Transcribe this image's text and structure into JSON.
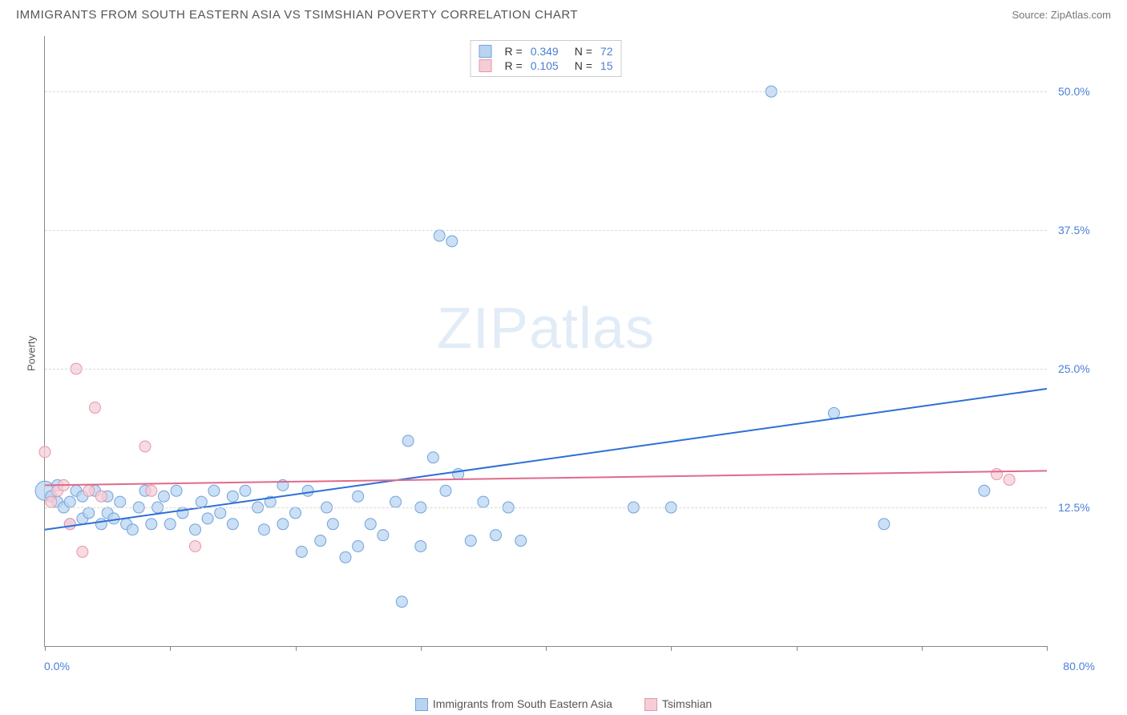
{
  "header": {
    "title": "IMMIGRANTS FROM SOUTH EASTERN ASIA VS TSIMSHIAN POVERTY CORRELATION CHART",
    "source": "Source: ZipAtlas.com"
  },
  "watermark": {
    "part1": "ZIP",
    "part2": "atlas"
  },
  "chart": {
    "type": "scatter",
    "ylabel": "Poverty",
    "xlim": [
      0,
      80
    ],
    "ylim": [
      0,
      55
    ],
    "background_color": "#ffffff",
    "grid_color": "#d8d8d8",
    "axis_color": "#888888",
    "tick_label_color": "#4a7fd8",
    "tick_fontsize": 14,
    "yticks": [
      {
        "v": 12.5,
        "label": "12.5%"
      },
      {
        "v": 25.0,
        "label": "25.0%"
      },
      {
        "v": 37.5,
        "label": "37.5%"
      },
      {
        "v": 50.0,
        "label": "50.0%"
      }
    ],
    "xticks_minor": [
      0,
      10,
      20,
      30,
      40,
      50,
      60,
      70,
      80
    ],
    "x_first_label": "0.0%",
    "x_last_label": "80.0%",
    "legend_top": [
      {
        "swatch_fill": "#b9d4f1",
        "swatch_stroke": "#6fa3dd",
        "r_label": "R =",
        "r_val": "0.349",
        "n_label": "N =",
        "n_val": "72"
      },
      {
        "swatch_fill": "#f6cdd7",
        "swatch_stroke": "#e596ab",
        "r_label": "R =",
        "r_val": "0.105",
        "n_label": "N =",
        "n_val": "15"
      }
    ],
    "legend_bottom": [
      {
        "swatch_fill": "#b9d4f1",
        "swatch_stroke": "#6fa3dd",
        "label": "Immigrants from South Eastern Asia"
      },
      {
        "swatch_fill": "#f6cdd7",
        "swatch_stroke": "#e596ab",
        "label": "Tsimshian"
      }
    ],
    "series": [
      {
        "name": "Immigrants from South Eastern Asia",
        "point_fill": "#b9d4f1",
        "point_stroke": "#6fa3dd",
        "point_radius": 7,
        "trend": {
          "x1": 0,
          "y1": 10.5,
          "x2": 80,
          "y2": 23.2,
          "stroke": "#2e6fd6",
          "width": 2
        },
        "points": [
          {
            "x": 0,
            "y": 14,
            "r": 12
          },
          {
            "x": 0.5,
            "y": 13.5
          },
          {
            "x": 1,
            "y": 13
          },
          {
            "x": 1,
            "y": 14.5
          },
          {
            "x": 1.5,
            "y": 12.5
          },
          {
            "x": 2,
            "y": 13
          },
          {
            "x": 2,
            "y": 11
          },
          {
            "x": 2.5,
            "y": 14
          },
          {
            "x": 3,
            "y": 13.5
          },
          {
            "x": 3,
            "y": 11.5
          },
          {
            "x": 3.5,
            "y": 12
          },
          {
            "x": 4,
            "y": 14
          },
          {
            "x": 4.5,
            "y": 11
          },
          {
            "x": 5,
            "y": 12
          },
          {
            "x": 5,
            "y": 13.5
          },
          {
            "x": 5.5,
            "y": 11.5
          },
          {
            "x": 6,
            "y": 13
          },
          {
            "x": 6.5,
            "y": 11
          },
          {
            "x": 7,
            "y": 10.5
          },
          {
            "x": 7.5,
            "y": 12.5
          },
          {
            "x": 8,
            "y": 14
          },
          {
            "x": 8.5,
            "y": 11
          },
          {
            "x": 9,
            "y": 12.5
          },
          {
            "x": 9.5,
            "y": 13.5
          },
          {
            "x": 10,
            "y": 11
          },
          {
            "x": 10.5,
            "y": 14
          },
          {
            "x": 11,
            "y": 12
          },
          {
            "x": 12,
            "y": 10.5
          },
          {
            "x": 12.5,
            "y": 13
          },
          {
            "x": 13,
            "y": 11.5
          },
          {
            "x": 13.5,
            "y": 14
          },
          {
            "x": 14,
            "y": 12
          },
          {
            "x": 15,
            "y": 13.5
          },
          {
            "x": 15,
            "y": 11
          },
          {
            "x": 16,
            "y": 14
          },
          {
            "x": 17,
            "y": 12.5
          },
          {
            "x": 17.5,
            "y": 10.5
          },
          {
            "x": 18,
            "y": 13
          },
          {
            "x": 19,
            "y": 11
          },
          {
            "x": 19,
            "y": 14.5
          },
          {
            "x": 20,
            "y": 12
          },
          {
            "x": 20.5,
            "y": 8.5
          },
          {
            "x": 21,
            "y": 14
          },
          {
            "x": 22,
            "y": 9.5
          },
          {
            "x": 22.5,
            "y": 12.5
          },
          {
            "x": 23,
            "y": 11
          },
          {
            "x": 24,
            "y": 8
          },
          {
            "x": 25,
            "y": 13.5
          },
          {
            "x": 25,
            "y": 9
          },
          {
            "x": 26,
            "y": 11
          },
          {
            "x": 27,
            "y": 10
          },
          {
            "x": 28,
            "y": 13
          },
          {
            "x": 28.5,
            "y": 4
          },
          {
            "x": 29,
            "y": 18.5
          },
          {
            "x": 30,
            "y": 12.5
          },
          {
            "x": 30,
            "y": 9
          },
          {
            "x": 31,
            "y": 17
          },
          {
            "x": 31.5,
            "y": 37
          },
          {
            "x": 32,
            "y": 14
          },
          {
            "x": 32.5,
            "y": 36.5
          },
          {
            "x": 33,
            "y": 15.5
          },
          {
            "x": 34,
            "y": 9.5
          },
          {
            "x": 35,
            "y": 13
          },
          {
            "x": 36,
            "y": 10
          },
          {
            "x": 37,
            "y": 12.5
          },
          {
            "x": 38,
            "y": 9.5
          },
          {
            "x": 47,
            "y": 12.5
          },
          {
            "x": 50,
            "y": 12.5
          },
          {
            "x": 58,
            "y": 50
          },
          {
            "x": 63,
            "y": 21
          },
          {
            "x": 67,
            "y": 11
          },
          {
            "x": 75,
            "y": 14
          }
        ]
      },
      {
        "name": "Tsimshian",
        "point_fill": "#f6cdd7",
        "point_stroke": "#e596ab",
        "point_radius": 7,
        "trend": {
          "x1": 0,
          "y1": 14.5,
          "x2": 80,
          "y2": 15.8,
          "stroke": "#e06a8a",
          "width": 2
        },
        "points": [
          {
            "x": 0,
            "y": 17.5
          },
          {
            "x": 0.5,
            "y": 13
          },
          {
            "x": 1,
            "y": 14
          },
          {
            "x": 1.5,
            "y": 14.5
          },
          {
            "x": 2,
            "y": 11
          },
          {
            "x": 2.5,
            "y": 25
          },
          {
            "x": 3,
            "y": 8.5
          },
          {
            "x": 3.5,
            "y": 14
          },
          {
            "x": 4,
            "y": 21.5
          },
          {
            "x": 4.5,
            "y": 13.5
          },
          {
            "x": 8,
            "y": 18
          },
          {
            "x": 8.5,
            "y": 14
          },
          {
            "x": 12,
            "y": 9
          },
          {
            "x": 76,
            "y": 15.5
          },
          {
            "x": 77,
            "y": 15
          }
        ]
      }
    ]
  }
}
